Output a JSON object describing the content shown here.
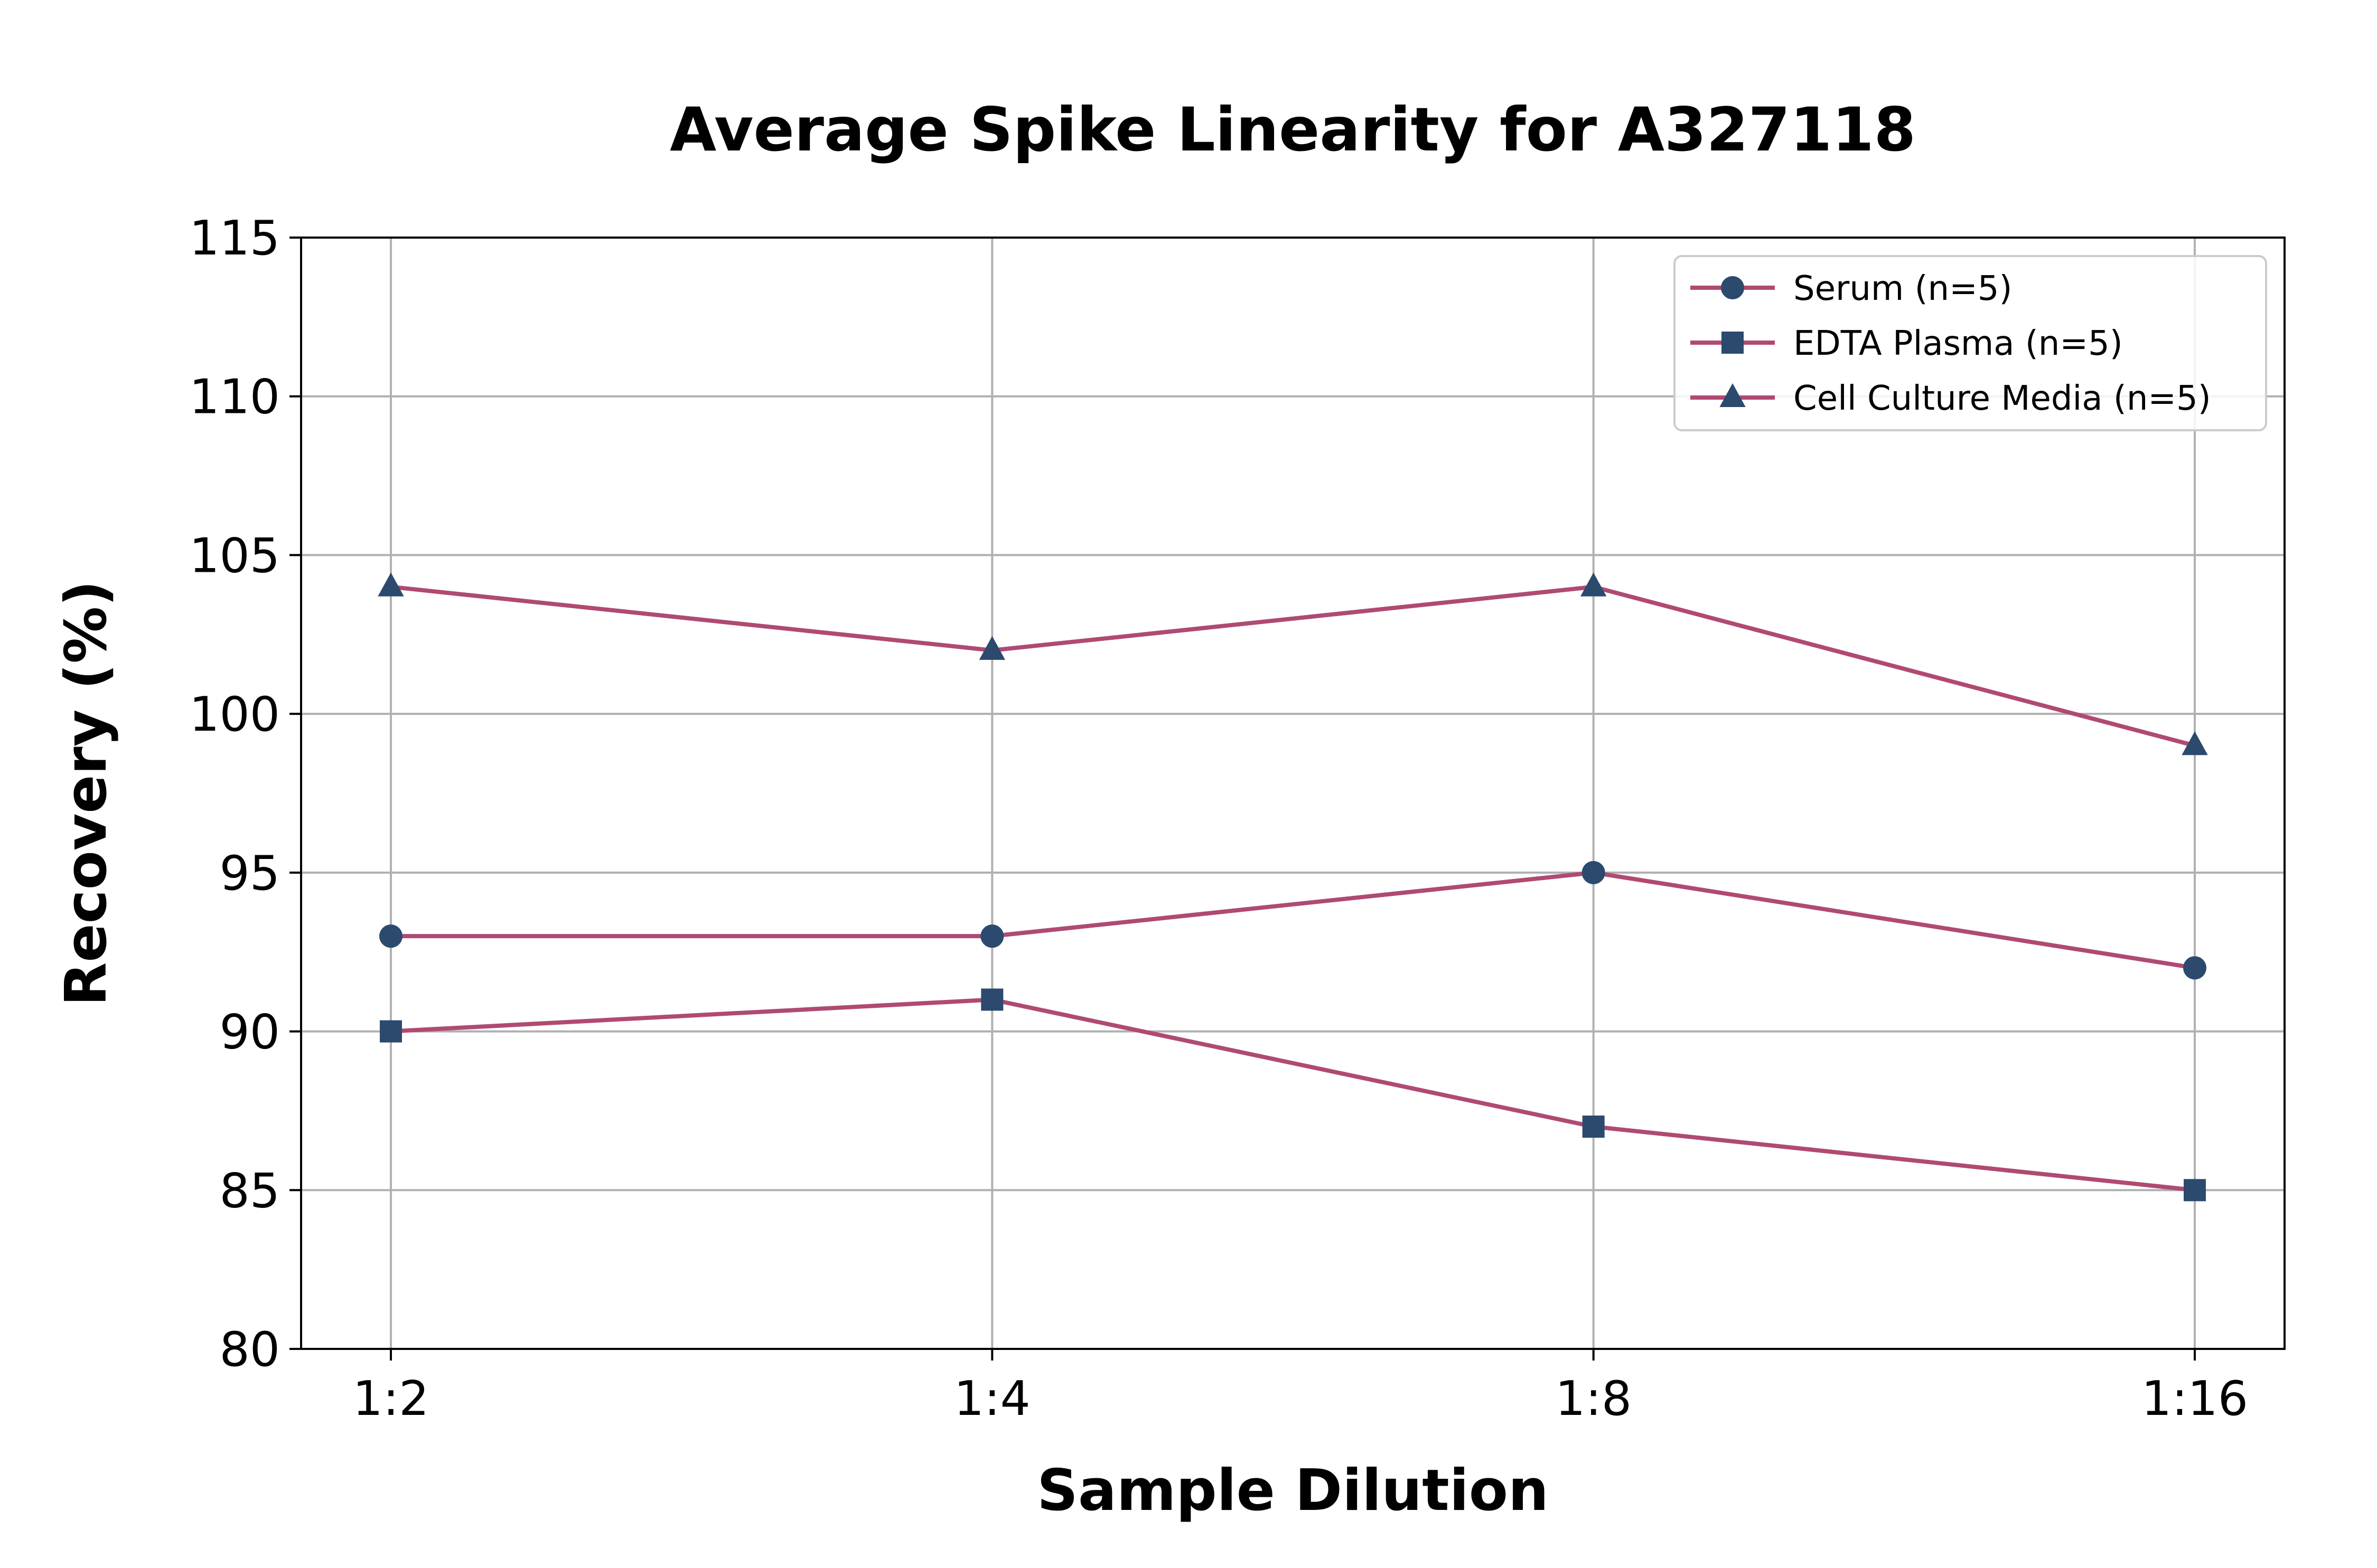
{
  "chart_data": {
    "type": "line",
    "title": "Average Spike Linearity for A327118",
    "xlabel": "Sample Dilution",
    "ylabel": "Recovery (%)",
    "categories": [
      "1:2",
      "1:4",
      "1:8",
      "1:16"
    ],
    "ylim": [
      80,
      115
    ],
    "yticks": [
      80,
      85,
      90,
      95,
      100,
      105,
      110,
      115
    ],
    "grid": true,
    "legend_position": "top-right",
    "line_color": "#b04a72",
    "marker_color": "#2c4a6e",
    "grid_color": "#b0b0b0",
    "series": [
      {
        "name": "Serum (n=5)",
        "marker": "circle",
        "values": [
          93,
          93,
          95,
          92
        ]
      },
      {
        "name": "EDTA Plasma (n=5)",
        "marker": "square",
        "values": [
          90,
          91,
          87,
          85
        ]
      },
      {
        "name": "Cell Culture Media (n=5)",
        "marker": "triangle",
        "values": [
          104,
          102,
          104,
          99
        ]
      }
    ]
  }
}
